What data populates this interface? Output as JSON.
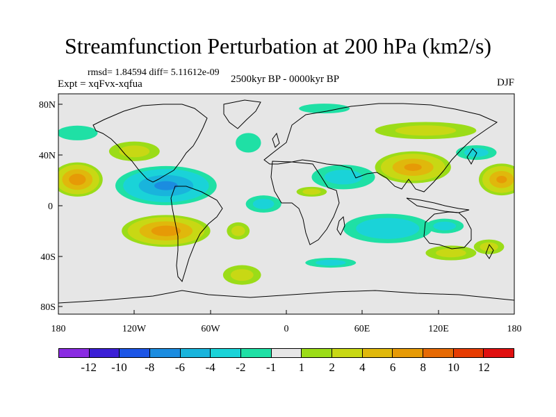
{
  "title": "Streamfunction Perturbation at 200 hPa (km2/s)",
  "stats": "rmsd= 1.84594 diff= 5.11612e-09",
  "experiment": "Expt = xqFvx-xqfua",
  "period": "2500kyr BP - 0000kyr BP",
  "season": "DJF",
  "colorbar": {
    "labels": [
      "-12",
      "-10",
      "-8",
      "-6",
      "-4",
      "-2",
      "-1",
      "1",
      "2",
      "4",
      "6",
      "8",
      "10",
      "12"
    ],
    "colors": [
      "#8a2be2",
      "#3b1fd6",
      "#1c55e6",
      "#1b8ce0",
      "#19b4dc",
      "#1ad3d8",
      "#1fe0a5",
      "#e6e6e6",
      "#9bdc18",
      "#c8d814",
      "#e0b80c",
      "#e69a06",
      "#e66a04",
      "#e63c02",
      "#e01010"
    ]
  },
  "chart_data": {
    "type": "map-contour",
    "title": "Streamfunction Perturbation at 200 hPa (km2/s)",
    "variable": "Streamfunction perturbation at 200 hPa",
    "units": "km2/s",
    "experiment": "xqFvx-xqfua",
    "period": "2500kyr BP - 0000kyr BP",
    "season": "DJF",
    "rmsd": 1.84594,
    "diff": 5.11612e-09,
    "lon_ticks": [
      "180",
      "120W",
      "60W",
      "0",
      "60E",
      "120E",
      "180"
    ],
    "lat_ticks": [
      "80N",
      "40N",
      "0",
      "40S",
      "80S"
    ],
    "lon_range": [
      -180,
      180
    ],
    "lat_range": [
      -90,
      90
    ],
    "contour_levels": [
      -12,
      -10,
      -8,
      -6,
      -4,
      -2,
      -1,
      1,
      2,
      4,
      6,
      8,
      10,
      12
    ],
    "anomaly_centers": [
      {
        "lon": -165,
        "lat": 20,
        "value": 7,
        "rx": 20,
        "ry": 14
      },
      {
        "lon": -95,
        "lat": 15,
        "value": -6,
        "rx": 40,
        "ry": 16
      },
      {
        "lon": -95,
        "lat": -22,
        "value": 7,
        "rx": 35,
        "ry": 13
      },
      {
        "lon": -120,
        "lat": 43,
        "value": 2,
        "rx": 20,
        "ry": 8
      },
      {
        "lon": -165,
        "lat": 58,
        "value": -1.5,
        "rx": 16,
        "ry": 6
      },
      {
        "lon": -30,
        "lat": 50,
        "value": -1.5,
        "rx": 10,
        "ry": 8
      },
      {
        "lon": -38,
        "lat": -22,
        "value": 2,
        "rx": 9,
        "ry": 7
      },
      {
        "lon": -35,
        "lat": -58,
        "value": 2,
        "rx": 15,
        "ry": 8
      },
      {
        "lon": -18,
        "lat": 0,
        "value": -2,
        "rx": 14,
        "ry": 7
      },
      {
        "lon": 20,
        "lat": 10,
        "value": 2,
        "rx": 12,
        "ry": 4
      },
      {
        "lon": 45,
        "lat": 22,
        "value": -2,
        "rx": 25,
        "ry": 10
      },
      {
        "lon": 100,
        "lat": 30,
        "value": 6,
        "rx": 30,
        "ry": 13
      },
      {
        "lon": 170,
        "lat": 20,
        "value": 6,
        "rx": 18,
        "ry": 13
      },
      {
        "lon": 150,
        "lat": 42,
        "value": -2,
        "rx": 16,
        "ry": 6
      },
      {
        "lon": 80,
        "lat": -20,
        "value": -3,
        "rx": 35,
        "ry": 12
      },
      {
        "lon": 30,
        "lat": 78,
        "value": -1.5,
        "rx": 20,
        "ry": 4
      },
      {
        "lon": 110,
        "lat": 60,
        "value": 2,
        "rx": 40,
        "ry": 7
      },
      {
        "lon": 130,
        "lat": -40,
        "value": 2,
        "rx": 20,
        "ry": 6
      },
      {
        "lon": 160,
        "lat": -35,
        "value": 2,
        "rx": 12,
        "ry": 6
      },
      {
        "lon": 35,
        "lat": -48,
        "value": -2,
        "rx": 20,
        "ry": 4
      },
      {
        "lon": 125,
        "lat": -18,
        "value": -2,
        "rx": 15,
        "ry": 6
      }
    ]
  }
}
